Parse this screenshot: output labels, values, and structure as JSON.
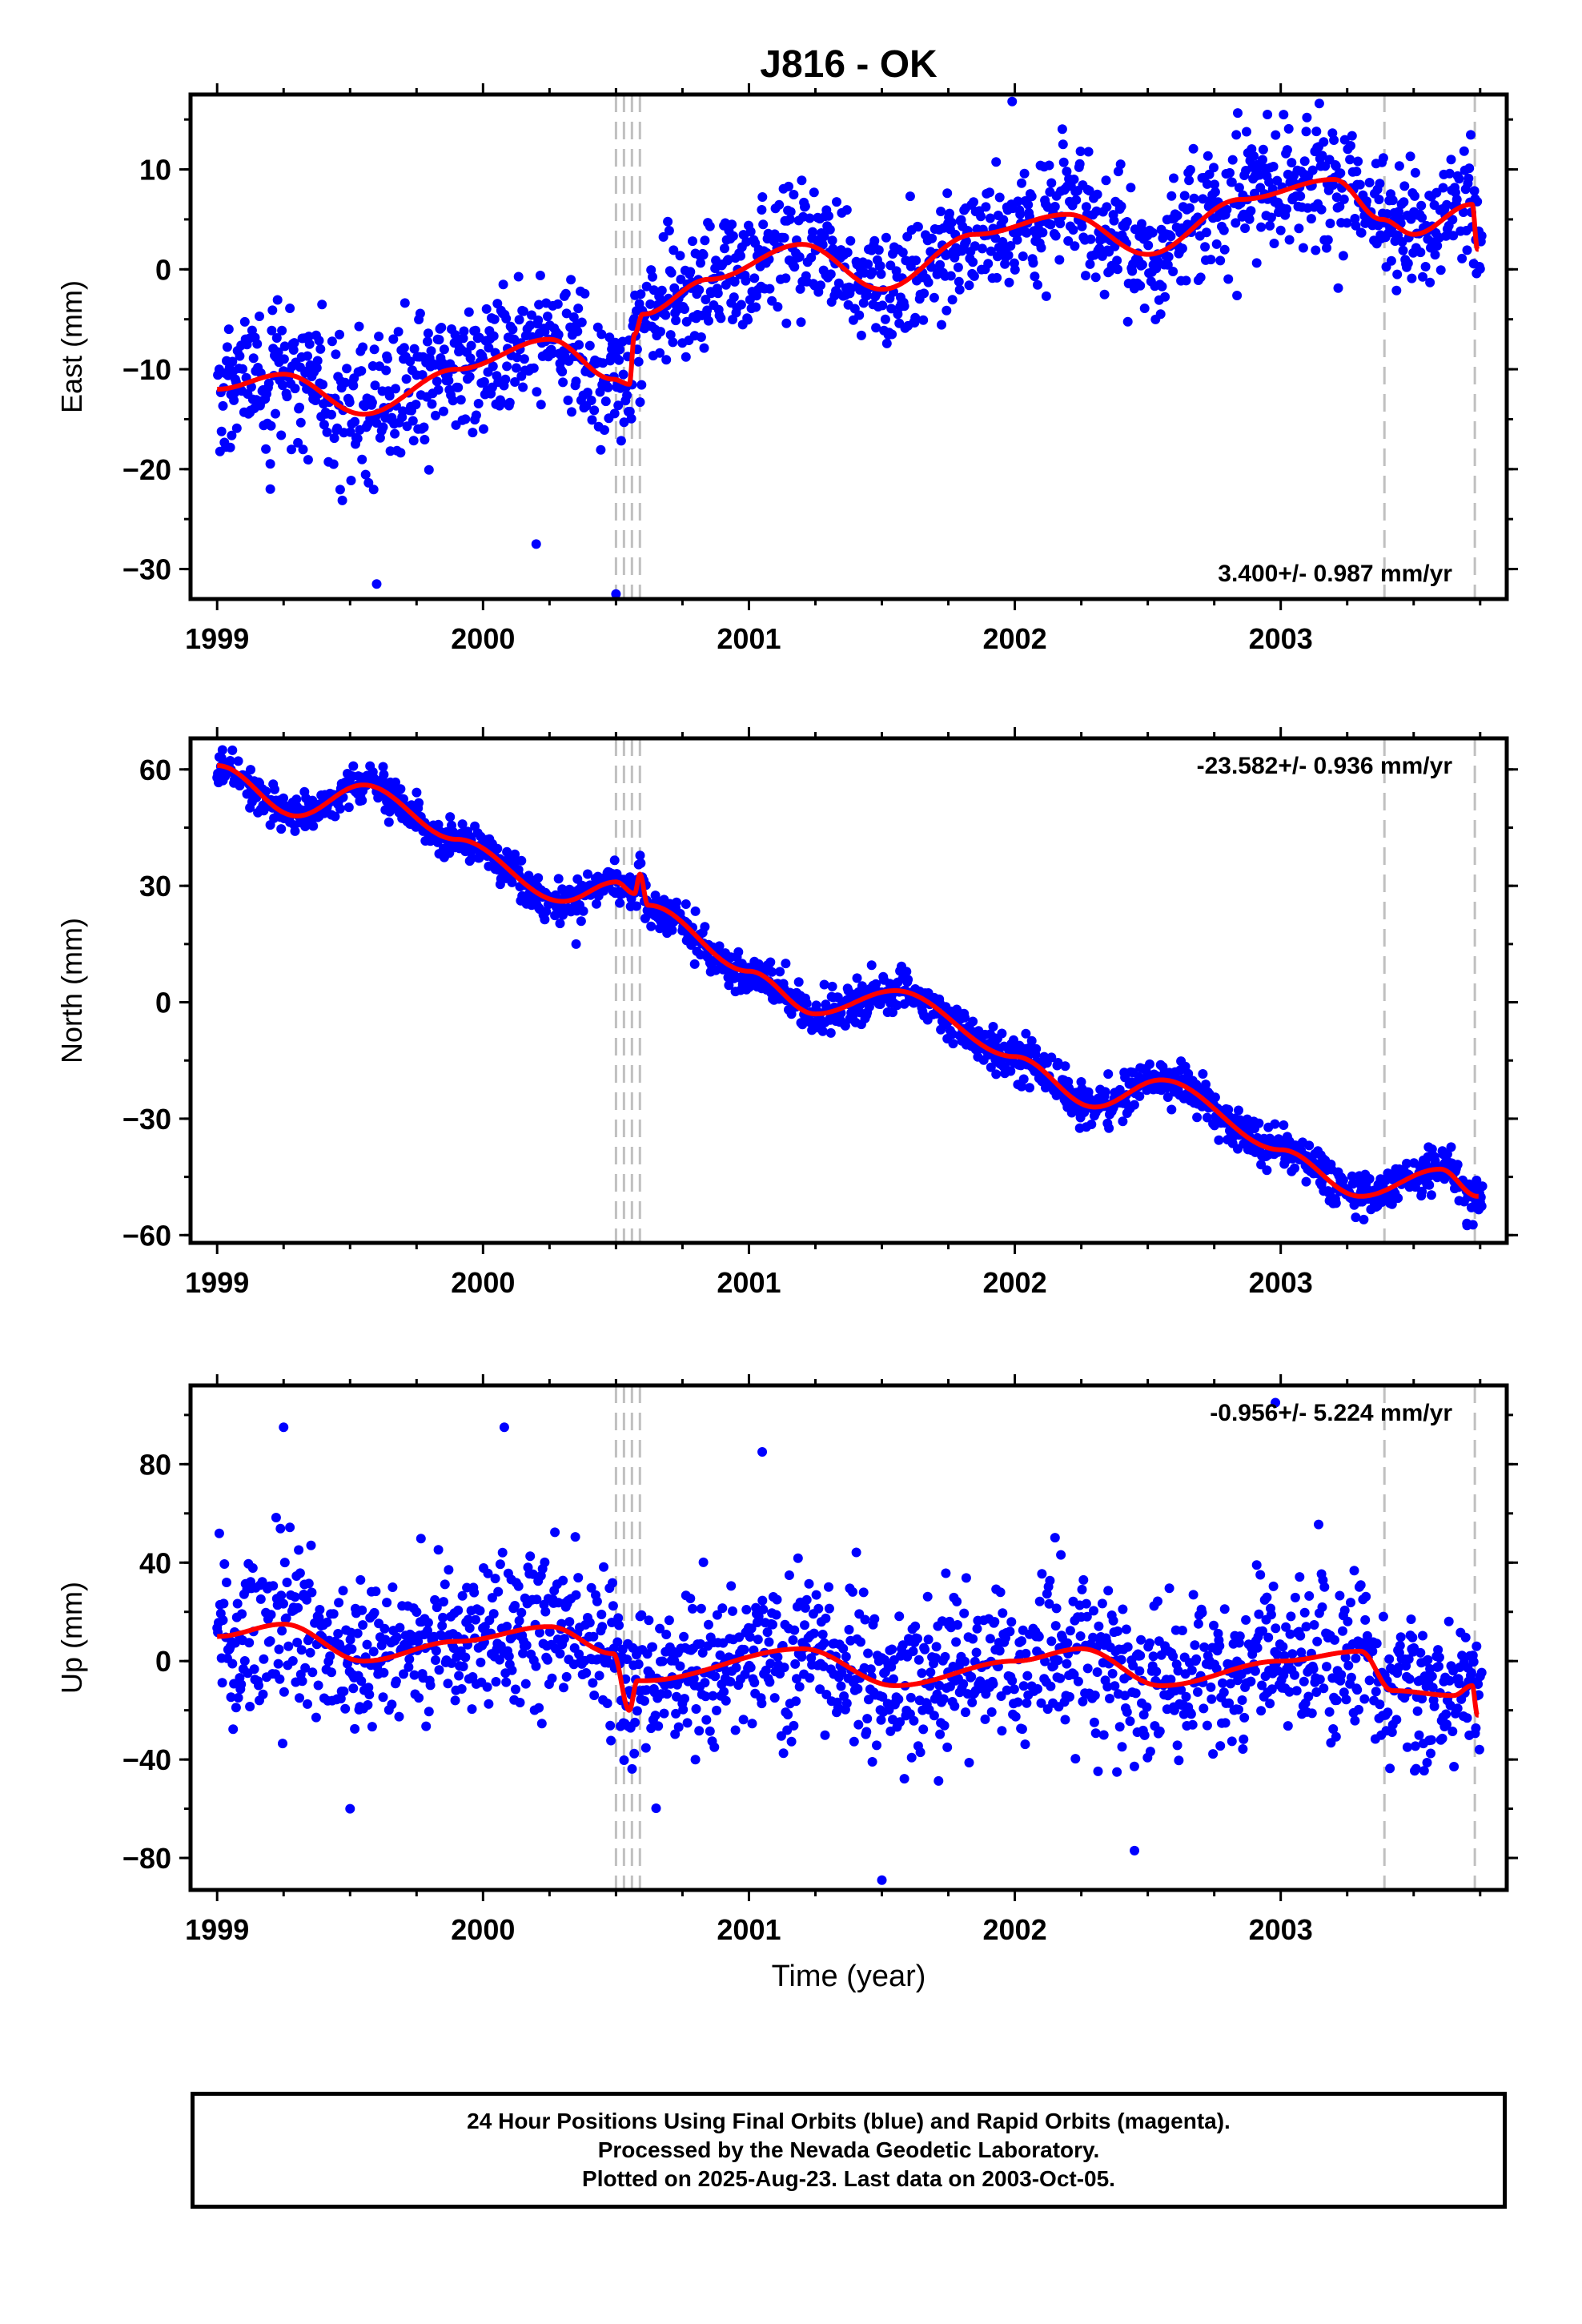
{
  "title": "J816 - OK",
  "xlabel": "Time (year)",
  "colors": {
    "points": "#0000ff",
    "model": "#ff0000",
    "steps": "#c0c0c0",
    "frame": "#000000"
  },
  "caption": {
    "line1": "24 Hour Positions Using Final Orbits (blue) and Rapid Orbits (magenta).",
    "line2": "Processed by the Nevada Geodetic Laboratory.",
    "line3": "Plotted on 2025-Aug-23. Last data on 2003-Oct-05."
  },
  "chart_data": [
    {
      "type": "scatter",
      "component": "East",
      "ylabel": "East (mm)",
      "xlim": [
        1998.9,
        2003.85
      ],
      "ylim": [
        -33,
        17.5
      ],
      "xticks": [
        1999,
        2000,
        2001,
        2002,
        2003
      ],
      "yticks": [
        -30,
        -20,
        -10,
        0,
        10
      ],
      "rate": "3.400+/- 0.987 mm/yr",
      "trend_per_year": 3.4,
      "anchor": [
        1999.0,
        -12
      ],
      "noise": 3.2,
      "seasonal": [
        [
          1999.0,
          -12
        ],
        [
          1999.25,
          -10.5
        ],
        [
          1999.55,
          -14.5
        ],
        [
          1999.9,
          -10
        ],
        [
          2000.25,
          -7
        ],
        [
          2000.49,
          -11
        ],
        [
          2000.55,
          -11.5
        ],
        [
          2000.57,
          -6.5
        ],
        [
          2000.6,
          -4.5
        ],
        [
          2000.85,
          -1
        ],
        [
          2001.2,
          2.5
        ],
        [
          2001.5,
          -2
        ],
        [
          2001.85,
          3.5
        ],
        [
          2002.2,
          5.5
        ],
        [
          2002.5,
          1.5
        ],
        [
          2002.85,
          7
        ],
        [
          2003.2,
          9
        ],
        [
          2003.38,
          5
        ],
        [
          2003.5,
          3.5
        ],
        [
          2003.72,
          6.5
        ],
        [
          2003.74,
          2
        ]
      ],
      "steps": [
        2000.5,
        2000.53,
        2000.56,
        2000.59,
        2003.39,
        2003.73
      ],
      "outliers": [
        [
          1999.6,
          -31.5
        ],
        [
          2000.5,
          -32.5
        ],
        [
          2001.99,
          16.8
        ],
        [
          2002.95,
          15.5
        ],
        [
          1999.2,
          -22
        ],
        [
          2000.2,
          -27.5
        ]
      ]
    },
    {
      "type": "scatter",
      "component": "North",
      "ylabel": "North (mm)",
      "xlim": [
        1998.9,
        2003.85
      ],
      "ylim": [
        -62,
        68
      ],
      "xticks": [
        1999,
        2000,
        2001,
        2002,
        2003
      ],
      "yticks": [
        -60,
        -30,
        0,
        30,
        60
      ],
      "rate": "-23.582+/- 0.936 mm/yr",
      "trend_per_year": -23.582,
      "anchor": [
        1999.0,
        61
      ],
      "noise": 2.6,
      "seasonal": [
        [
          1999.0,
          61
        ],
        [
          1999.3,
          48
        ],
        [
          1999.55,
          56
        ],
        [
          1999.9,
          42
        ],
        [
          2000.3,
          26
        ],
        [
          2000.5,
          31
        ],
        [
          2000.57,
          28
        ],
        [
          2000.59,
          33
        ],
        [
          2000.62,
          25
        ],
        [
          2001.0,
          8
        ],
        [
          2001.25,
          -3
        ],
        [
          2001.55,
          3
        ],
        [
          2002.0,
          -14
        ],
        [
          2002.3,
          -27
        ],
        [
          2002.55,
          -20
        ],
        [
          2003.0,
          -38
        ],
        [
          2003.3,
          -50
        ],
        [
          2003.6,
          -43
        ],
        [
          2003.74,
          -50
        ]
      ],
      "steps": [
        2000.5,
        2000.53,
        2000.56,
        2000.59,
        2003.39,
        2003.73
      ],
      "outliers": [
        [
          1999.02,
          65
        ],
        [
          2000.35,
          15
        ],
        [
          2003.7,
          -57
        ]
      ]
    },
    {
      "type": "scatter",
      "component": "Up",
      "ylabel": "Up (mm)",
      "xlim": [
        1998.9,
        2003.85
      ],
      "ylim": [
        -93,
        112
      ],
      "xticks": [
        1999,
        2000,
        2001,
        2002,
        2003
      ],
      "yticks": [
        -80,
        -40,
        0,
        40,
        80
      ],
      "rate": "-0.956+/- 5.224 mm/yr",
      "trend_per_year": -0.956,
      "anchor": [
        1999.0,
        10
      ],
      "noise": 16,
      "seasonal": [
        [
          1999.0,
          10
        ],
        [
          1999.25,
          15
        ],
        [
          1999.55,
          0
        ],
        [
          1999.9,
          8
        ],
        [
          2000.25,
          14
        ],
        [
          2000.49,
          3
        ],
        [
          2000.55,
          -20
        ],
        [
          2000.58,
          -8
        ],
        [
          2000.6,
          -8
        ],
        [
          2001.2,
          5
        ],
        [
          2001.55,
          -10
        ],
        [
          2002.0,
          0
        ],
        [
          2002.25,
          5
        ],
        [
          2002.55,
          -10
        ],
        [
          2003.0,
          0
        ],
        [
          2003.3,
          4
        ],
        [
          2003.42,
          -12
        ],
        [
          2003.65,
          -14
        ],
        [
          2003.72,
          -10
        ],
        [
          2003.74,
          -22
        ]
      ],
      "steps": [
        2000.5,
        2000.53,
        2000.56,
        2000.59,
        2003.39,
        2003.73
      ],
      "outliers": [
        [
          1999.25,
          95
        ],
        [
          2000.08,
          95
        ],
        [
          2001.05,
          85
        ],
        [
          2002.98,
          105
        ],
        [
          2001.5,
          -89
        ],
        [
          2002.45,
          -77
        ],
        [
          1999.5,
          -60
        ]
      ]
    }
  ]
}
